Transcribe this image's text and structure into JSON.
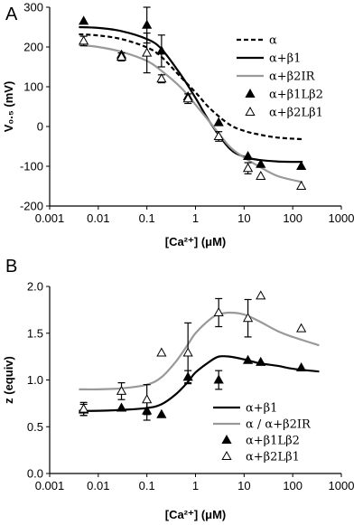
{
  "chart_data": [
    {
      "type": "scatter",
      "panel_label": "A",
      "xlabel": "[Ca²⁺] (μM)",
      "ylabel": "V₀.₅ (mV)",
      "xscale": "log",
      "xlim": [
        0.001,
        1000
      ],
      "ylim": [
        -200,
        300
      ],
      "xticks": [
        "0.001",
        "0.01",
        "0.1",
        "1",
        "10",
        "100",
        "1000"
      ],
      "yticks": [
        "-200",
        "-100",
        "0",
        "100",
        "200",
        "300"
      ],
      "legend_position": "top-right",
      "series": [
        {
          "name": "α",
          "kind": "line",
          "style": "dashed",
          "color": "#000000",
          "x": [
            0.004,
            0.01,
            0.03,
            0.1,
            0.2,
            0.5,
            1,
            2,
            5,
            10,
            20,
            50,
            160
          ],
          "y": [
            232,
            229,
            220,
            199,
            175,
            124,
            86,
            45,
            5,
            -11,
            -20,
            -28,
            -32
          ]
        },
        {
          "name": "α+β1",
          "kind": "line",
          "style": "solid",
          "color": "#000000",
          "x": [
            0.004,
            0.01,
            0.03,
            0.1,
            0.2,
            0.5,
            1,
            2,
            5,
            10,
            20,
            50,
            160
          ],
          "y": [
            250,
            248,
            240,
            220,
            195,
            130,
            72,
            10,
            -55,
            -76,
            -84,
            -88,
            -89
          ]
        },
        {
          "name": "α+β2IR",
          "kind": "line",
          "style": "solid",
          "color": "#999999",
          "x": [
            0.004,
            0.01,
            0.03,
            0.1,
            0.2,
            0.5,
            1,
            2,
            5,
            10,
            20,
            50,
            160
          ],
          "y": [
            205,
            200,
            188,
            165,
            140,
            98,
            55,
            10,
            -50,
            -78,
            -100,
            -125,
            -140
          ]
        },
        {
          "name": "α+β1Lβ2",
          "kind": "markers",
          "marker": "filled-triangle",
          "x": [
            0.005,
            0.03,
            0.1,
            0.2,
            0.7,
            3,
            12,
            22,
            150
          ],
          "y": [
            265,
            180,
            255,
            190,
            75,
            10,
            -75,
            -95,
            -100
          ],
          "err": [
            0,
            0,
            45,
            40,
            0,
            0,
            0,
            0,
            0
          ]
        },
        {
          "name": "α+β2Lβ1",
          "kind": "markers",
          "marker": "open-triangle",
          "x": [
            0.005,
            0.03,
            0.1,
            0.2,
            0.7,
            3,
            12,
            22,
            150
          ],
          "y": [
            215,
            175,
            185,
            120,
            70,
            -25,
            -105,
            -125,
            -150
          ],
          "err": [
            12,
            10,
            50,
            10,
            12,
            12,
            14,
            0,
            0
          ]
        }
      ]
    },
    {
      "type": "scatter",
      "panel_label": "B",
      "xlabel": "[Ca²⁺] (μM)",
      "ylabel": "z (equiv)",
      "xscale": "log",
      "xlim": [
        0.001,
        1000
      ],
      "ylim": [
        0.0,
        2.0
      ],
      "xticks": [
        "0.001",
        "0.01",
        "0.1",
        "1",
        "10",
        "100",
        "1000"
      ],
      "yticks": [
        "0.0",
        "0.5",
        "1.0",
        "1.5",
        "2.0"
      ],
      "legend_position": "bottom-right",
      "series": [
        {
          "name": "α+β1",
          "kind": "line",
          "style": "solid",
          "color": "#000000",
          "x": [
            0.004,
            0.01,
            0.03,
            0.1,
            0.2,
            0.4,
            0.7,
            1,
            2,
            3,
            5,
            10,
            20,
            50,
            100,
            350
          ],
          "y": [
            0.67,
            0.67,
            0.68,
            0.7,
            0.74,
            0.85,
            0.98,
            1.08,
            1.2,
            1.25,
            1.25,
            1.22,
            1.18,
            1.15,
            1.12,
            1.09
          ]
        },
        {
          "name": "α / α+β2IR",
          "kind": "line",
          "style": "solid",
          "color": "#999999",
          "x": [
            0.004,
            0.01,
            0.03,
            0.1,
            0.2,
            0.4,
            0.7,
            1,
            2,
            3,
            5,
            10,
            20,
            50,
            100,
            350
          ],
          "y": [
            0.9,
            0.9,
            0.91,
            0.95,
            1.03,
            1.2,
            1.38,
            1.5,
            1.65,
            1.7,
            1.72,
            1.7,
            1.63,
            1.52,
            1.46,
            1.37
          ]
        },
        {
          "name": "α+β1Lβ2",
          "kind": "markers",
          "marker": "filled-triangle",
          "x": [
            0.005,
            0.03,
            0.1,
            0.2,
            0.7,
            3,
            12,
            22,
            150
          ],
          "y": [
            0.68,
            0.7,
            0.67,
            0.63,
            1.03,
            1.0,
            1.21,
            1.19,
            1.13
          ],
          "err": [
            0.06,
            0,
            0.1,
            0,
            0.07,
            0.1,
            0,
            0,
            0
          ]
        },
        {
          "name": "α+β2Lβ1",
          "kind": "markers",
          "marker": "open-triangle",
          "x": [
            0.005,
            0.03,
            0.1,
            0.2,
            0.7,
            3,
            12,
            22,
            150
          ],
          "y": [
            0.69,
            0.88,
            0.79,
            1.29,
            1.29,
            1.72,
            1.66,
            1.9,
            1.55
          ],
          "err": [
            0.07,
            0.09,
            0.16,
            0,
            0.32,
            0.15,
            0.2,
            0,
            0
          ]
        }
      ]
    }
  ]
}
